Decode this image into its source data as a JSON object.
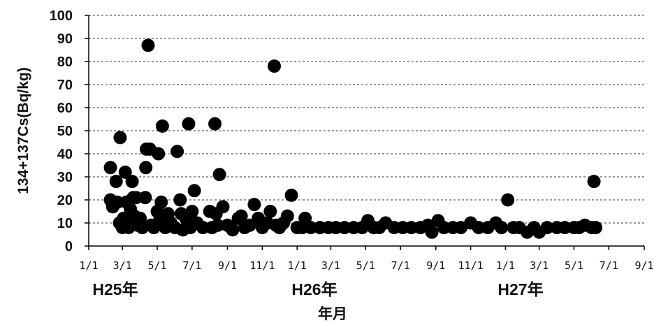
{
  "chart_data": {
    "type": "scatter",
    "xlabel": "年月",
    "ylabel": "134+137Cs(Bq/kg)",
    "ylim": [
      0,
      100
    ],
    "yticks": [
      "0",
      "10",
      "20",
      "30",
      "40",
      "50",
      "60",
      "70",
      "80",
      "90",
      "100"
    ],
    "xlim": [
      "2013-01-01",
      "2015-09-01"
    ],
    "xticks": [
      "1/1",
      "3/1",
      "5/1",
      "7/1",
      "9/1",
      "11/1",
      "1/1",
      "3/1",
      "5/1",
      "7/1",
      "9/1",
      "11/1",
      "1/1",
      "3/1",
      "5/1",
      "7/1",
      "9/1"
    ],
    "year_labels": [
      "H25年",
      "H26年",
      "H27年"
    ],
    "grid": "horizontal dashed",
    "legend": "none",
    "marker_color": "#000000",
    "series": [
      {
        "points": [
          [
            "2013-02-08",
            34
          ],
          [
            "2013-02-08",
            20
          ],
          [
            "2013-02-12",
            17
          ],
          [
            "2013-02-18",
            28
          ],
          [
            "2013-02-20",
            19
          ],
          [
            "2013-02-24",
            10
          ],
          [
            "2013-02-25",
            47
          ],
          [
            "2013-03-01",
            8
          ],
          [
            "2013-03-03",
            12
          ],
          [
            "2013-03-06",
            32
          ],
          [
            "2013-03-08",
            19
          ],
          [
            "2013-03-10",
            10
          ],
          [
            "2013-03-12",
            8
          ],
          [
            "2013-03-15",
            16
          ],
          [
            "2013-03-18",
            28
          ],
          [
            "2013-03-20",
            21
          ],
          [
            "2013-03-22",
            13
          ],
          [
            "2013-03-25",
            21
          ],
          [
            "2013-03-28",
            9
          ],
          [
            "2013-04-01",
            12
          ],
          [
            "2013-04-05",
            8
          ],
          [
            "2013-04-10",
            21
          ],
          [
            "2013-04-11",
            34
          ],
          [
            "2013-04-12",
            42
          ],
          [
            "2013-04-15",
            87
          ],
          [
            "2013-04-18",
            42
          ],
          [
            "2013-04-20",
            9
          ],
          [
            "2013-04-25",
            8
          ],
          [
            "2013-05-01",
            15
          ],
          [
            "2013-05-03",
            40
          ],
          [
            "2013-05-06",
            12
          ],
          [
            "2013-05-08",
            19
          ],
          [
            "2013-05-10",
            52
          ],
          [
            "2013-05-15",
            8
          ],
          [
            "2013-05-20",
            14
          ],
          [
            "2013-05-25",
            10
          ],
          [
            "2013-06-01",
            8
          ],
          [
            "2013-06-05",
            41
          ],
          [
            "2013-06-10",
            20
          ],
          [
            "2013-06-12",
            14
          ],
          [
            "2013-06-15",
            7
          ],
          [
            "2013-06-20",
            12
          ],
          [
            "2013-06-25",
            53
          ],
          [
            "2013-06-28",
            8
          ],
          [
            "2013-07-01",
            15
          ],
          [
            "2013-07-05",
            24
          ],
          [
            "2013-07-10",
            10
          ],
          [
            "2013-07-20",
            8
          ],
          [
            "2013-08-01",
            15
          ],
          [
            "2013-08-05",
            8
          ],
          [
            "2013-08-10",
            53
          ],
          [
            "2013-08-12",
            14
          ],
          [
            "2013-08-15",
            9
          ],
          [
            "2013-08-18",
            31
          ],
          [
            "2013-08-24",
            17
          ],
          [
            "2013-09-01",
            9
          ],
          [
            "2013-09-10",
            7
          ],
          [
            "2013-09-20",
            12
          ],
          [
            "2013-09-25",
            13
          ],
          [
            "2013-10-01",
            8
          ],
          [
            "2013-10-10",
            9
          ],
          [
            "2013-10-18",
            18
          ],
          [
            "2013-10-25",
            12
          ],
          [
            "2013-11-01",
            8
          ],
          [
            "2013-11-10",
            10
          ],
          [
            "2013-11-15",
            15
          ],
          [
            "2013-11-22",
            78
          ],
          [
            "2013-11-25",
            9
          ],
          [
            "2013-12-01",
            8
          ],
          [
            "2013-12-08",
            10
          ],
          [
            "2013-12-15",
            13
          ],
          [
            "2013-12-22",
            22
          ],
          [
            "2014-01-01",
            8
          ],
          [
            "2014-01-10",
            8
          ],
          [
            "2014-01-15",
            12
          ],
          [
            "2014-01-25",
            8
          ],
          [
            "2014-02-10",
            8
          ],
          [
            "2014-02-25",
            8
          ],
          [
            "2014-03-10",
            8
          ],
          [
            "2014-03-25",
            8
          ],
          [
            "2014-04-10",
            8
          ],
          [
            "2014-04-25",
            8
          ],
          [
            "2014-05-05",
            11
          ],
          [
            "2014-05-15",
            8
          ],
          [
            "2014-05-25",
            8
          ],
          [
            "2014-06-05",
            10
          ],
          [
            "2014-06-20",
            8
          ],
          [
            "2014-07-05",
            8
          ],
          [
            "2014-07-20",
            8
          ],
          [
            "2014-08-05",
            8
          ],
          [
            "2014-08-18",
            9
          ],
          [
            "2014-08-25",
            6
          ],
          [
            "2014-09-05",
            11
          ],
          [
            "2014-09-15",
            8
          ],
          [
            "2014-10-01",
            8
          ],
          [
            "2014-10-15",
            8
          ],
          [
            "2014-11-01",
            10
          ],
          [
            "2014-11-15",
            8
          ],
          [
            "2014-12-01",
            8
          ],
          [
            "2014-12-15",
            10
          ],
          [
            "2014-12-25",
            8
          ],
          [
            "2015-01-05",
            20
          ],
          [
            "2015-01-15",
            8
          ],
          [
            "2015-01-25",
            8
          ],
          [
            "2015-02-08",
            6
          ],
          [
            "2015-02-20",
            8
          ],
          [
            "2015-03-01",
            6
          ],
          [
            "2015-03-15",
            8
          ],
          [
            "2015-04-01",
            8
          ],
          [
            "2015-04-15",
            8
          ],
          [
            "2015-05-01",
            8
          ],
          [
            "2015-05-10",
            8
          ],
          [
            "2015-05-20",
            9
          ],
          [
            "2015-06-01",
            8
          ],
          [
            "2015-06-05",
            28
          ],
          [
            "2015-06-08",
            8
          ]
        ]
      }
    ]
  }
}
